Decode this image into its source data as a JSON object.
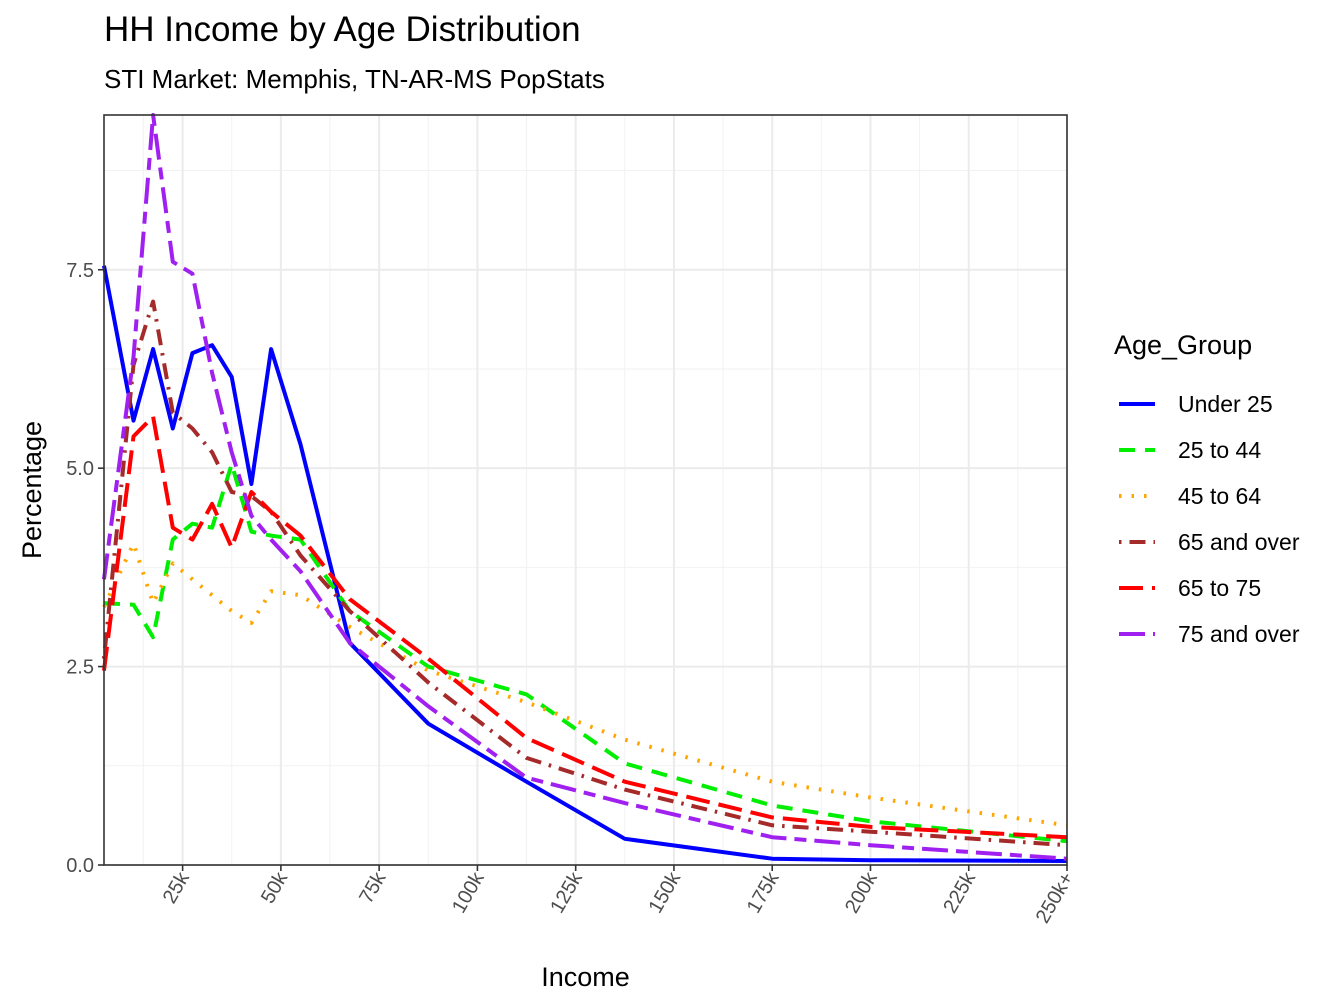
{
  "chart_data": {
    "type": "line",
    "title": "HH Income by Age Distribution",
    "subtitle": "STI Market: Memphis, TN-AR-MS PopStats",
    "xlabel": "Income",
    "ylabel": "Percentage",
    "xlim": [
      5,
      250
    ],
    "ylim": [
      0,
      9.45
    ],
    "xticks": [
      25,
      50,
      75,
      100,
      125,
      150,
      175,
      200,
      225,
      250
    ],
    "xtick_labels": [
      "25k",
      "50k",
      "75k",
      "100k",
      "125k",
      "150k",
      "175k",
      "200k",
      "225k",
      "250k+"
    ],
    "yticks": [
      0,
      2.5,
      5,
      7.5
    ],
    "ytick_labels": [
      "0.0",
      "2.5",
      "5.0",
      "7.5"
    ],
    "grid": true,
    "legend_title": "Age_Group",
    "legend_position": "right",
    "x": [
      5,
      12.5,
      17.5,
      22.5,
      27.5,
      32.5,
      37.5,
      42.5,
      47.5,
      55,
      67.5,
      87.5,
      112.5,
      137.5,
      175,
      200,
      250
    ],
    "series": [
      {
        "name": "Under 25",
        "color": "#0000FF",
        "dash": "solid",
        "values": [
          7.55,
          5.6,
          6.5,
          5.5,
          6.45,
          6.55,
          6.15,
          4.8,
          6.5,
          5.3,
          2.8,
          1.78,
          1.05,
          0.33,
          0.08,
          0.06,
          0.05
        ]
      },
      {
        "name": "25 to 44",
        "color": "#00EE00",
        "dash": "dashed",
        "values": [
          3.3,
          3.28,
          2.87,
          4.1,
          4.3,
          4.25,
          5.05,
          4.2,
          4.15,
          4.1,
          3.2,
          2.5,
          2.15,
          1.28,
          0.75,
          0.55,
          0.3
        ]
      },
      {
        "name": "45 to 64",
        "color": "#FFA500",
        "dash": "dotted",
        "values": [
          3.25,
          4.05,
          3.3,
          3.8,
          3.6,
          3.4,
          3.2,
          3.05,
          3.45,
          3.4,
          3.0,
          2.45,
          2.05,
          1.58,
          1.05,
          0.85,
          0.5
        ]
      },
      {
        "name": "65 and over",
        "color": "#A52A2A",
        "dash": "dotdash",
        "values": [
          2.6,
          6.3,
          7.1,
          5.7,
          5.5,
          5.2,
          4.7,
          4.65,
          4.45,
          3.9,
          3.2,
          2.3,
          1.35,
          0.95,
          0.5,
          0.42,
          0.25
        ]
      },
      {
        "name": "65 to 75",
        "color": "#FF0000",
        "dash": "longdash",
        "values": [
          2.45,
          5.4,
          5.65,
          4.25,
          4.1,
          4.55,
          4.0,
          4.7,
          4.45,
          4.15,
          3.35,
          2.6,
          1.6,
          1.05,
          0.6,
          0.48,
          0.35
        ]
      },
      {
        "name": "75 and over",
        "color": "#A020F0",
        "dash": "twodash",
        "values": [
          3.6,
          6.4,
          9.45,
          7.6,
          7.45,
          6.2,
          5.2,
          4.4,
          4.1,
          3.7,
          2.8,
          2.0,
          1.1,
          0.78,
          0.35,
          0.25,
          0.08
        ]
      }
    ]
  }
}
